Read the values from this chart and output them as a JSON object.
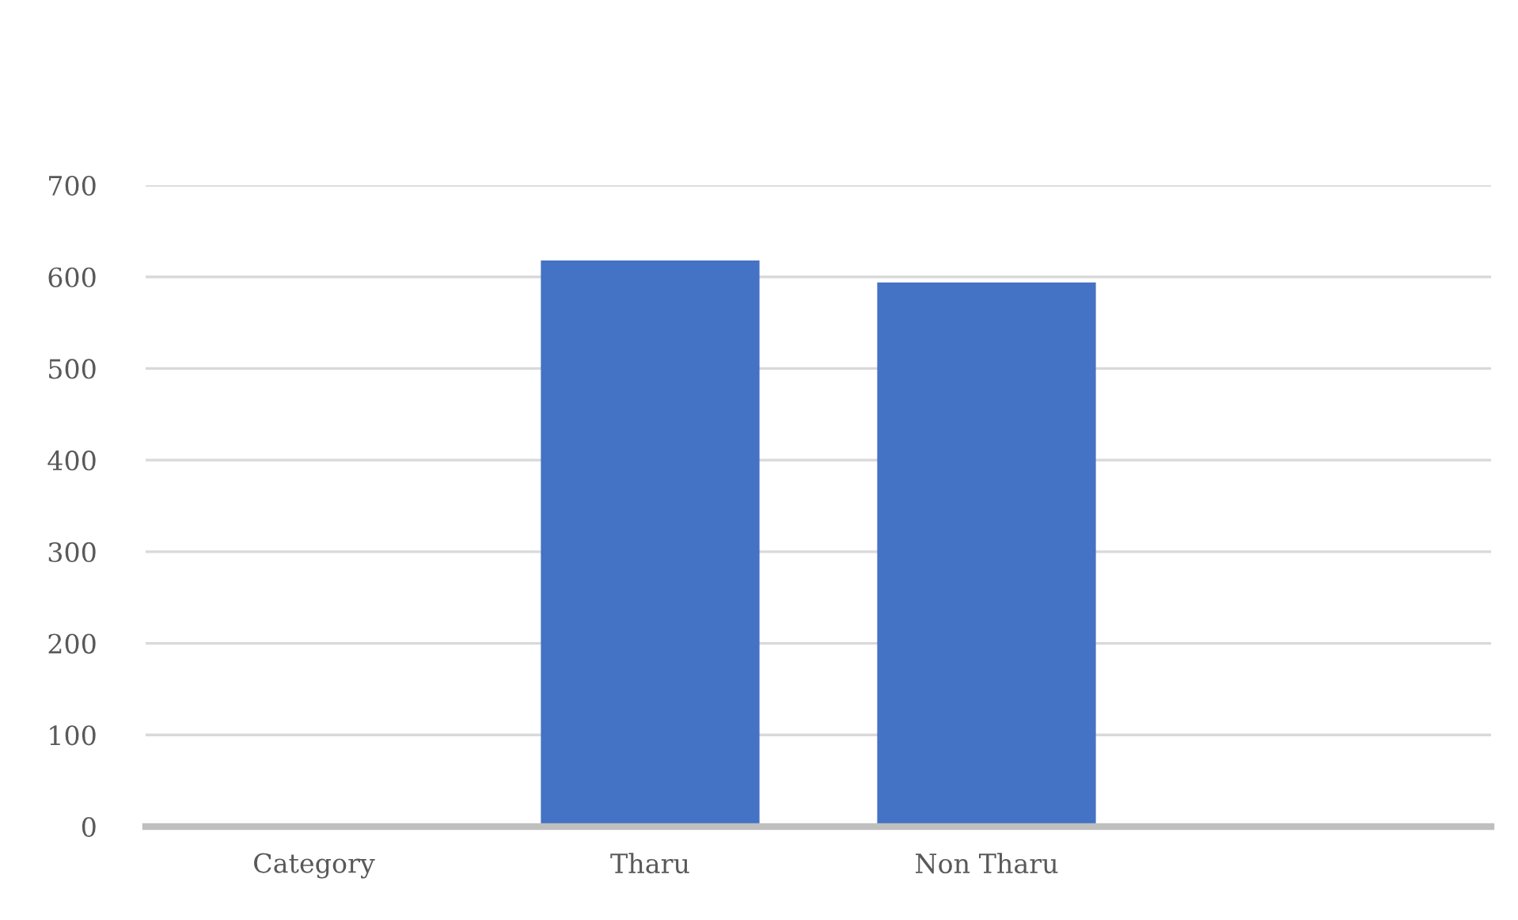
{
  "chart_data": {
    "type": "bar",
    "categories": [
      "Category",
      "Tharu",
      "Non Tharu",
      null
    ],
    "values": [
      null,
      618,
      594,
      null
    ],
    "color": "#4472c4",
    "ylim": [
      0,
      700
    ],
    "yticks": [
      0,
      100,
      200,
      300,
      400,
      500,
      600,
      700
    ],
    "grid": "y",
    "legend": false
  }
}
